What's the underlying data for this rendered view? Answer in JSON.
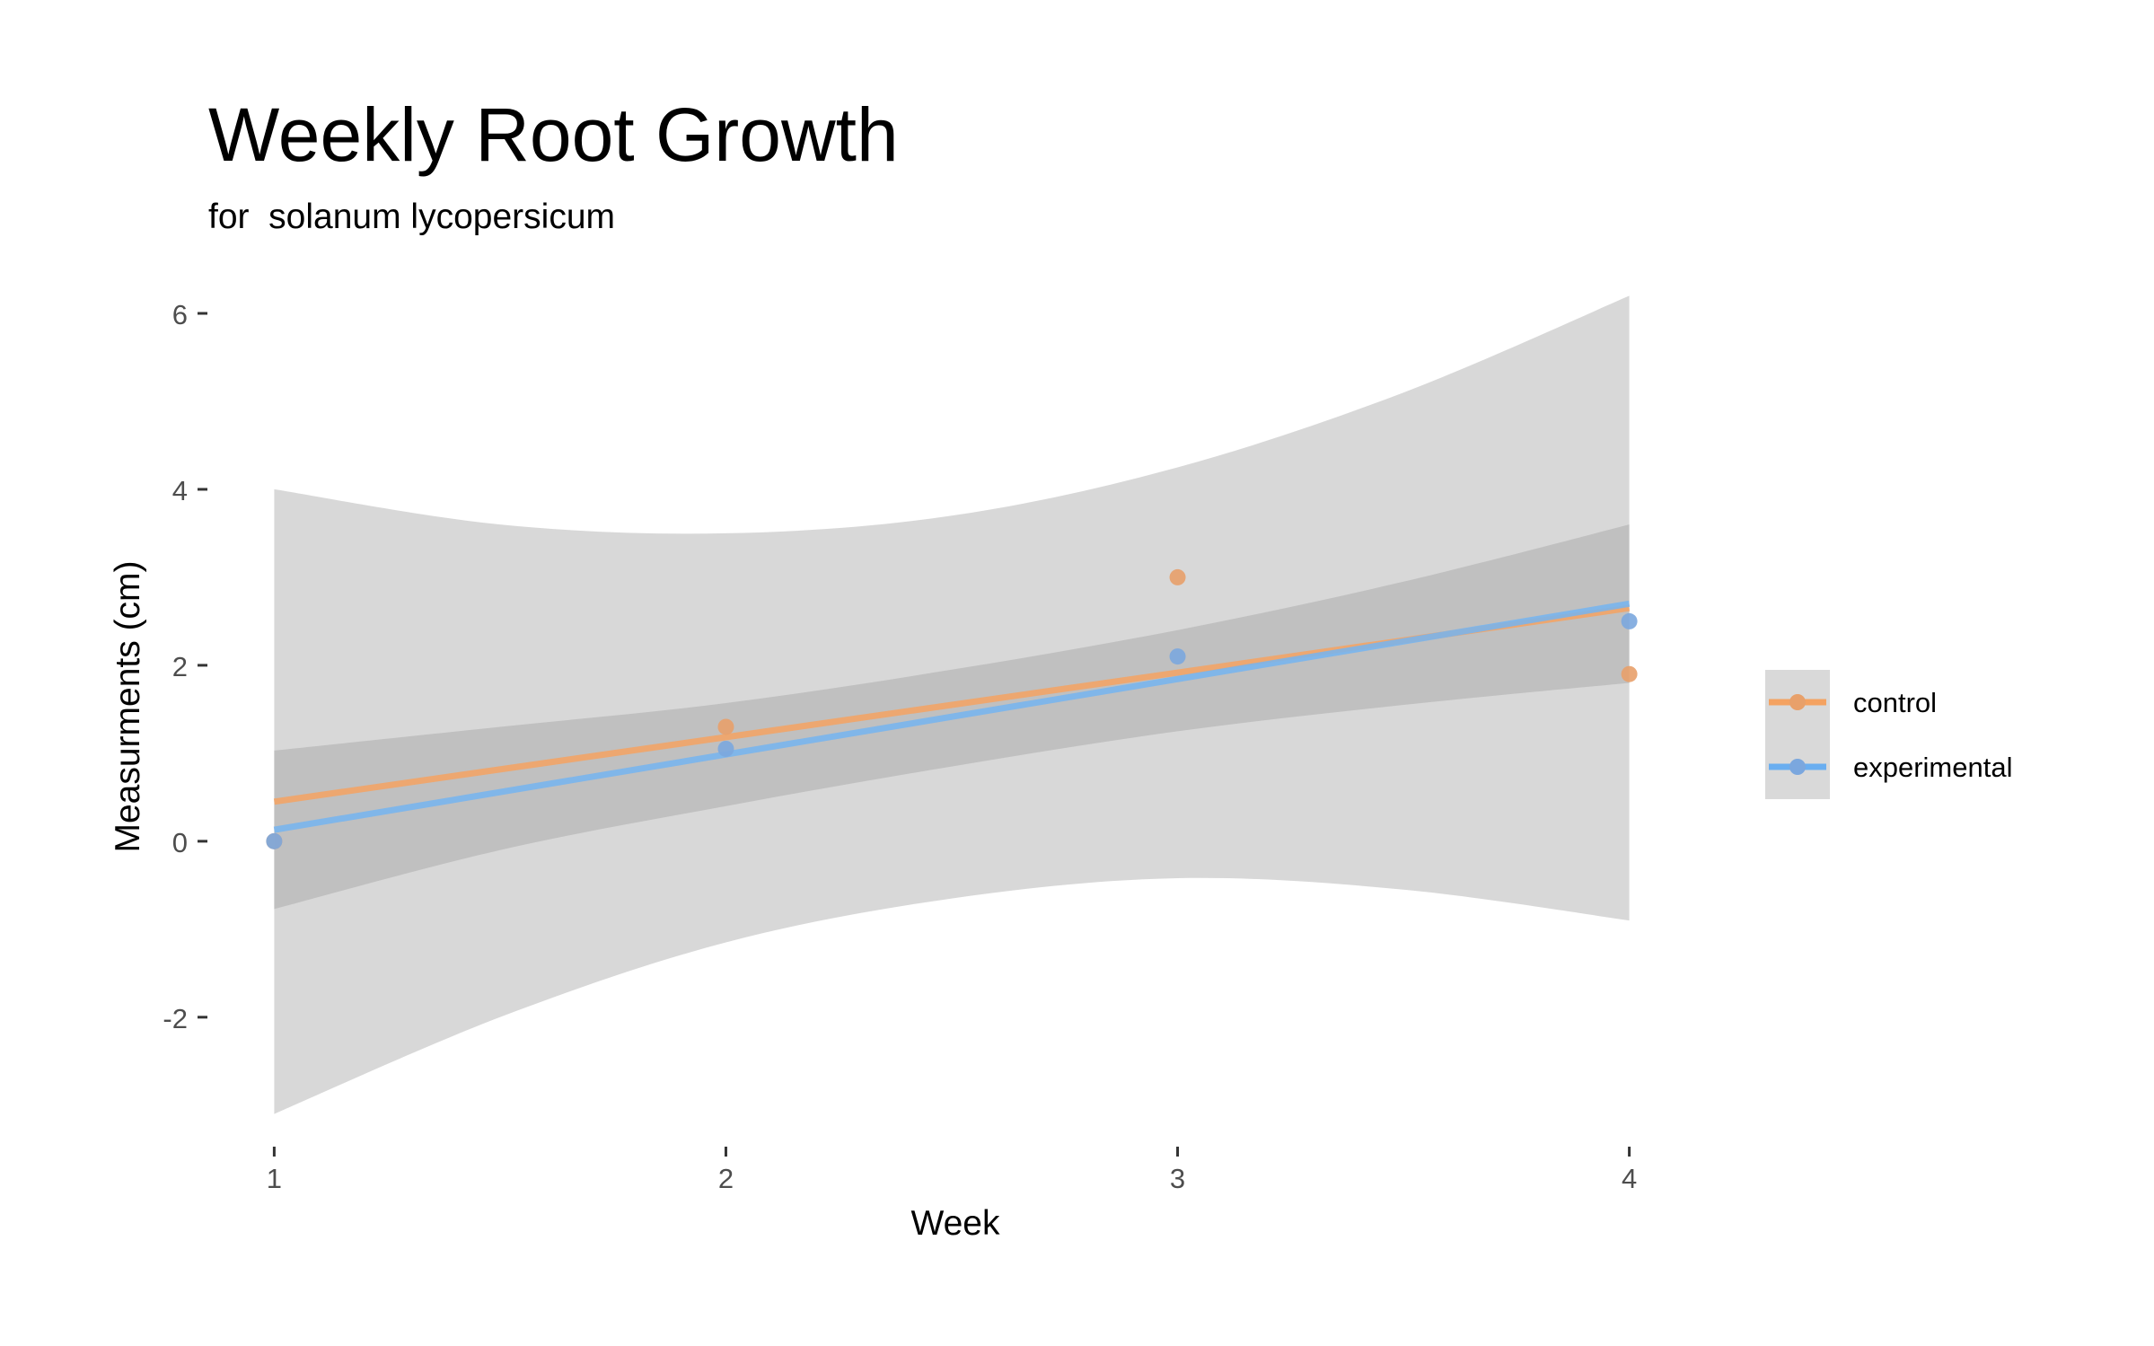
{
  "chart_data": {
    "type": "scatter",
    "title": "Weekly Root Growth",
    "subtitle": "for  solanum lycopersicum",
    "xlabel": "Week",
    "ylabel": "Measurments (cm)",
    "x_ticks": [
      1,
      2,
      3,
      4
    ],
    "y_ticks": [
      -2,
      0,
      2,
      4,
      6
    ],
    "xlim": [
      0.87,
      4.13
    ],
    "ylim": [
      -3.4,
      6.5
    ],
    "grid": false,
    "legend_position": "right",
    "trend": "linear fit with confidence band",
    "series": [
      {
        "name": "control",
        "color": "#F4A261",
        "line_color": "#F4A261",
        "point_color": "#E8A06A",
        "points": [
          {
            "x": 1,
            "y": 0
          },
          {
            "x": 2,
            "y": 1.3
          },
          {
            "x": 3,
            "y": 3.0
          },
          {
            "x": 4,
            "y": 1.9
          }
        ],
        "fit": {
          "x": [
            1,
            4
          ],
          "y": [
            0.45,
            2.65
          ]
        },
        "band_upper": [
          [
            1,
            1.03
          ],
          [
            1.5,
            1.3
          ],
          [
            2,
            1.57
          ],
          [
            2.5,
            1.95
          ],
          [
            3,
            2.4
          ],
          [
            3.5,
            2.95
          ],
          [
            4,
            3.6
          ]
        ],
        "band_lower": [
          [
            1,
            -0.77
          ],
          [
            1.5,
            -0.1
          ],
          [
            2,
            0.4
          ],
          [
            2.5,
            0.85
          ],
          [
            3,
            1.25
          ],
          [
            3.5,
            1.55
          ],
          [
            4,
            1.8
          ]
        ]
      },
      {
        "name": "experimental",
        "color": "#6AAEF0",
        "line_color": "#74B4F0",
        "point_color": "#7BA7DE",
        "points": [
          {
            "x": 1,
            "y": 0
          },
          {
            "x": 2,
            "y": 1.05
          },
          {
            "x": 3,
            "y": 2.1
          },
          {
            "x": 4,
            "y": 2.5
          }
        ],
        "fit": {
          "x": [
            1,
            4
          ],
          "y": [
            0.13,
            2.7
          ]
        },
        "band_upper": [
          [
            1,
            4.0
          ],
          [
            1.5,
            3.6
          ],
          [
            2,
            3.5
          ],
          [
            2.5,
            3.7
          ],
          [
            3,
            4.25
          ],
          [
            3.5,
            5.1
          ],
          [
            4,
            6.2
          ]
        ],
        "band_lower": [
          [
            1,
            -3.1
          ],
          [
            1.5,
            -2.0
          ],
          [
            2,
            -1.15
          ],
          [
            2.5,
            -0.65
          ],
          [
            3,
            -0.42
          ],
          [
            3.5,
            -0.55
          ],
          [
            4,
            -0.9
          ]
        ]
      }
    ]
  }
}
